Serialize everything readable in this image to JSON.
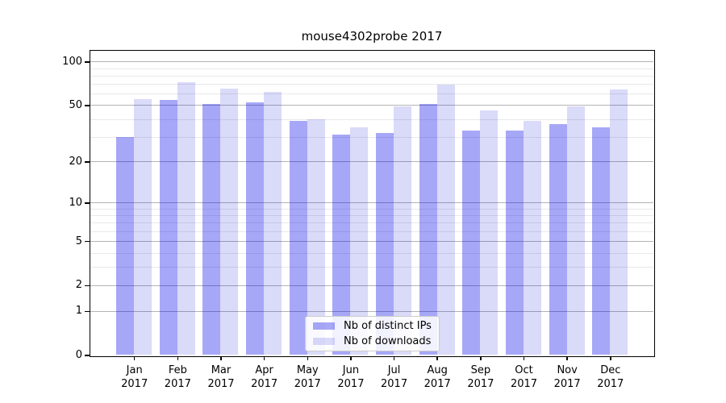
{
  "title": "mouse4302probe 2017",
  "chart_data": {
    "type": "bar",
    "title": "mouse4302probe 2017",
    "categories": [
      "Jan",
      "Feb",
      "Mar",
      "Apr",
      "May",
      "Jun",
      "Jul",
      "Aug",
      "Sep",
      "Oct",
      "Nov",
      "Dec"
    ],
    "category_year": "2017",
    "series": [
      {
        "name": "Nb of distinct IPs",
        "color_hex": "#a7a7f7",
        "fill": "rgba(0,0,232,0.345)",
        "values": [
          30,
          54,
          51,
          52,
          39,
          31,
          32,
          51,
          33,
          33,
          37,
          35
        ]
      },
      {
        "name": "Nb of downloads",
        "color_hex": "#dadaf9",
        "fill": "rgba(0,0,214,0.145)",
        "values": [
          55,
          72,
          65,
          62,
          40,
          35,
          49,
          69,
          46,
          39,
          49,
          64
        ]
      }
    ],
    "yscale": "log(1+x)",
    "ylim": [
      0,
      120
    ],
    "ytick_values": [
      0,
      1,
      2,
      5,
      10,
      20,
      50,
      100
    ],
    "ytick_labels": [
      "0",
      "1",
      "2",
      "5",
      "10",
      "20",
      "50",
      "100"
    ],
    "minor_grid_values": [
      3,
      4,
      6,
      7,
      8,
      9,
      30,
      40,
      60,
      70,
      80,
      90
    ],
    "grid": true,
    "legend_position": "lower center",
    "xlabel": "",
    "ylabel": ""
  },
  "colors": {
    "major_grid": "#b3b3b3",
    "minor_grid": "#e8e8e8",
    "spine": "#000000",
    "legend_border": "#cccccc",
    "background": "#ffffff"
  }
}
